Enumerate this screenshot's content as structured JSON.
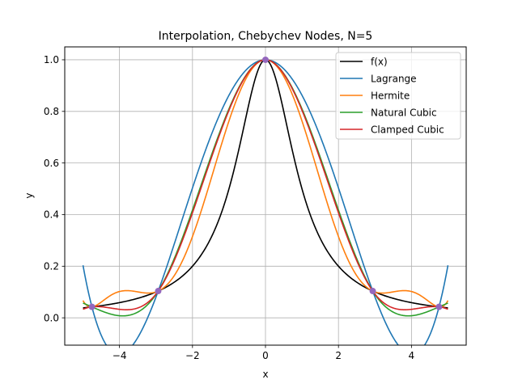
{
  "chart_data": {
    "type": "line",
    "title": "Interpolation, Chebychev Nodes, N=5",
    "xlabel": "x",
    "ylabel": "y",
    "xlim": [
      -5.5,
      5.5
    ],
    "ylim": [
      -0.106,
      1.05
    ],
    "xticks": [
      -4,
      -2,
      0,
      2,
      4
    ],
    "xtick_labels": [
      "−4",
      "−2",
      "0",
      "2",
      "4"
    ],
    "yticks": [
      0.0,
      0.2,
      0.4,
      0.6,
      0.8,
      1.0
    ],
    "ytick_labels": [
      "0.0",
      "0.2",
      "0.4",
      "0.6",
      "0.8",
      "1.0"
    ],
    "grid": true,
    "legend_position": "top-right",
    "function": "1/(1+x^2)",
    "x_range": [
      -5,
      5
    ],
    "nodes": {
      "x": [
        -4.7553,
        -2.9389,
        0.0,
        2.9389,
        4.7553
      ],
      "y": [
        0.0424,
        0.1038,
        1.0,
        0.1038,
        0.0424
      ],
      "color": "#9467bd"
    },
    "series": [
      {
        "name": "f(x)",
        "color": "#000000",
        "method": "exact"
      },
      {
        "name": "Lagrange",
        "color": "#1f77b4",
        "method": "lagrange"
      },
      {
        "name": "Hermite",
        "color": "#ff7f0e",
        "method": "hermite"
      },
      {
        "name": "Natural Cubic",
        "color": "#2ca02c",
        "method": "natural"
      },
      {
        "name": "Clamped Cubic",
        "color": "#d62728",
        "method": "clamped"
      }
    ]
  }
}
